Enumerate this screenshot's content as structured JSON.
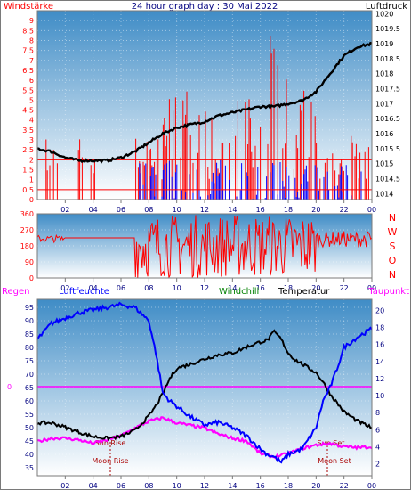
{
  "colors": {
    "frame": "#7a7a7a",
    "wind": "#ff0000",
    "gust_blue": "#0000ff",
    "pressure": "#000000",
    "humidity": "#0000ff",
    "windchill": "#008000",
    "temperature": "#000000",
    "dewpoint": "#ff00ff",
    "rain": "#ff00ff",
    "navy": "#000080",
    "bg_top": "#3f8cc6",
    "bg_bottom": "#ffffff"
  },
  "header": {
    "wind_label": "Windstärke",
    "title": "24 hour graph day : 30 Mai 2022",
    "pressure_label": "Luftdruck"
  },
  "legend": {
    "rain": "Regen",
    "humidity": "Luftfeuchte",
    "windchill": "Windchill",
    "temperature": "Temperatur",
    "dewpoint": "Taupunkt"
  },
  "direction_letters": [
    "N",
    "W",
    "S",
    "O",
    "N"
  ],
  "annotations": {
    "sun_rise": "Sun Rise",
    "sun_set": "Sun Set",
    "moon_rise": "Moon Rise",
    "moon_set": "Moon Set"
  },
  "chart_data": [
    {
      "type": "line",
      "title": "24 hour graph day : 30 Mai 2022",
      "x_ticks": [
        "02",
        "04",
        "06",
        "08",
        "10",
        "12",
        "14",
        "16",
        "18",
        "20",
        "22",
        "00"
      ],
      "left_axis": {
        "label": "Windstärke",
        "ticks": [
          "0",
          "0.5",
          "1",
          "1.5",
          "2",
          "2.5",
          "3",
          "3.5",
          "4",
          "4.5",
          "5",
          "5.5",
          "6",
          "6.5",
          "7",
          "7.5",
          "8",
          "8.5",
          "9"
        ],
        "ylim": [
          0,
          9.5
        ]
      },
      "right_axis": {
        "label": "Luftdruck",
        "ticks": [
          "1014",
          "1014.5",
          "1015",
          "1015.5",
          "1016",
          "1016.5",
          "1017",
          "1017.5",
          "1018",
          "1018.5",
          "1019",
          "1019.5",
          "1020"
        ],
        "ylim": [
          1013.8,
          1020.1
        ]
      },
      "series": [
        {
          "name": "Luftdruck",
          "axis": "right",
          "x": [
            0,
            1,
            2,
            3,
            4,
            5,
            6,
            7,
            8,
            9,
            10,
            11,
            12,
            13,
            14,
            15,
            16,
            17,
            18,
            19,
            20,
            21,
            22,
            23,
            24
          ],
          "y": [
            1015.5,
            1015.4,
            1015.2,
            1015.1,
            1015.1,
            1015.1,
            1015.2,
            1015.4,
            1015.7,
            1016.0,
            1016.2,
            1016.3,
            1016.4,
            1016.6,
            1016.7,
            1016.8,
            1016.9,
            1016.9,
            1017.0,
            1017.1,
            1017.4,
            1018.0,
            1018.6,
            1018.9,
            1019.0
          ]
        }
      ]
    },
    {
      "type": "line",
      "x_ticks": [
        "02",
        "04",
        "06",
        "08",
        "10",
        "12",
        "14",
        "16",
        "18",
        "20",
        "22",
        "00"
      ],
      "y_ticks": [
        "0",
        "90",
        "180",
        "270",
        "360"
      ],
      "ylim": [
        0,
        360
      ]
    },
    {
      "type": "line",
      "x_ticks": [
        "02",
        "04",
        "06",
        "08",
        "10",
        "12",
        "14",
        "16",
        "18",
        "20",
        "22",
        "00"
      ],
      "left_axis": {
        "ticks": [
          "35",
          "40",
          "45",
          "50",
          "55",
          "60",
          "65",
          "70",
          "75",
          "80",
          "85",
          "90",
          "95"
        ],
        "ylim": [
          32,
          98
        ]
      },
      "right_axis": {
        "ticks": [
          "2",
          "4",
          "6",
          "8",
          "10",
          "12",
          "14",
          "16",
          "18",
          "20"
        ],
        "ylim": [
          0.6,
          21.3
        ]
      },
      "rain_axis_tick": "0",
      "series": [
        {
          "name": "Luftfeuchte",
          "axis": "left",
          "x": [
            0,
            1,
            2,
            3,
            4,
            5,
            6,
            7,
            8,
            8.5,
            9,
            9.5,
            10,
            11,
            12,
            13,
            14,
            15,
            16,
            16.5,
            17,
            17.5,
            18,
            19,
            20,
            20.5,
            21,
            21.5,
            22,
            23,
            24
          ],
          "y": [
            83,
            89,
            91,
            93,
            94,
            95,
            96,
            95,
            90,
            78,
            63,
            60,
            58,
            54,
            51,
            52,
            50,
            47,
            42,
            40,
            39,
            37,
            40,
            42,
            50,
            60,
            65,
            72,
            80,
            84,
            87
          ]
        },
        {
          "name": "Temperatur",
          "axis": "right",
          "x": [
            0,
            1,
            2,
            3,
            4,
            5,
            6,
            7,
            8,
            8.5,
            9,
            9.5,
            10,
            11,
            12,
            13,
            14,
            15,
            16,
            16.5,
            17,
            17.5,
            18,
            18.5,
            19,
            20,
            20.5,
            21,
            22,
            23,
            24
          ],
          "y": [
            6.8,
            6.8,
            6.3,
            5.7,
            5.2,
            5.0,
            5.2,
            5.9,
            7.6,
            8.8,
            10.2,
            12.0,
            13.2,
            13.7,
            14.3,
            14.8,
            15.0,
            15.7,
            16.3,
            16.5,
            17.5,
            16.6,
            15.0,
            14.2,
            13.7,
            12.7,
            11.6,
            10.2,
            8.1,
            7.0,
            6.2
          ]
        },
        {
          "name": "Taupunkt",
          "axis": "right",
          "x": [
            0,
            1,
            2,
            3,
            4,
            5,
            6,
            7,
            8,
            9,
            10,
            11,
            12,
            13,
            14,
            15,
            16,
            16.5,
            17,
            17.5,
            18,
            19,
            20,
            21,
            22,
            23,
            24
          ],
          "y": [
            4.6,
            5.0,
            5.0,
            4.8,
            4.4,
            4.8,
            5.3,
            6.2,
            7.0,
            7.4,
            6.8,
            6.5,
            6.2,
            5.5,
            5.0,
            4.7,
            3.2,
            3.0,
            2.8,
            3.0,
            3.2,
            3.8,
            4.2,
            4.4,
            4.0,
            3.9,
            4.0
          ]
        }
      ]
    }
  ]
}
